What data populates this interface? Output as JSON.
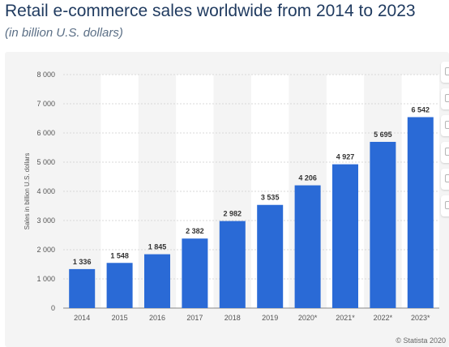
{
  "header": {
    "title": "Retail e-commerce sales worldwide from 2014 to 2023",
    "subtitle": "(in billion U.S. dollars)"
  },
  "credit": "© Statista 2020",
  "colors": {
    "bar": "#2a6ad6",
    "panel": "#f4f4f4",
    "band": "#ffffff"
  },
  "toolbar": {
    "icons": [
      "toolbar-icon-1",
      "toolbar-icon-2",
      "toolbar-icon-3",
      "toolbar-icon-4",
      "toolbar-icon-5",
      "toolbar-icon-6"
    ]
  },
  "chart_data": {
    "type": "bar",
    "categories": [
      "2014",
      "2015",
      "2016",
      "2017",
      "2018",
      "2019",
      "2020*",
      "2021*",
      "2022*",
      "2023*"
    ],
    "values": [
      1336,
      1548,
      1845,
      2382,
      2982,
      3535,
      4206,
      4927,
      5695,
      6542
    ],
    "value_labels": [
      "1 336",
      "1 548",
      "1 845",
      "2 382",
      "2 982",
      "3 535",
      "4 206",
      "4 927",
      "5 695",
      "6 542"
    ],
    "ylabel": "Sales in billion U.S. dollars",
    "ylim": [
      0,
      8000
    ],
    "yticks": [
      0,
      1000,
      2000,
      3000,
      4000,
      5000,
      6000,
      7000,
      8000
    ],
    "ytick_labels": [
      "0",
      "1 000",
      "2 000",
      "3 000",
      "4 000",
      "5 000",
      "6 000",
      "7 000",
      "8 000"
    ],
    "grid": true,
    "legend": "none"
  }
}
